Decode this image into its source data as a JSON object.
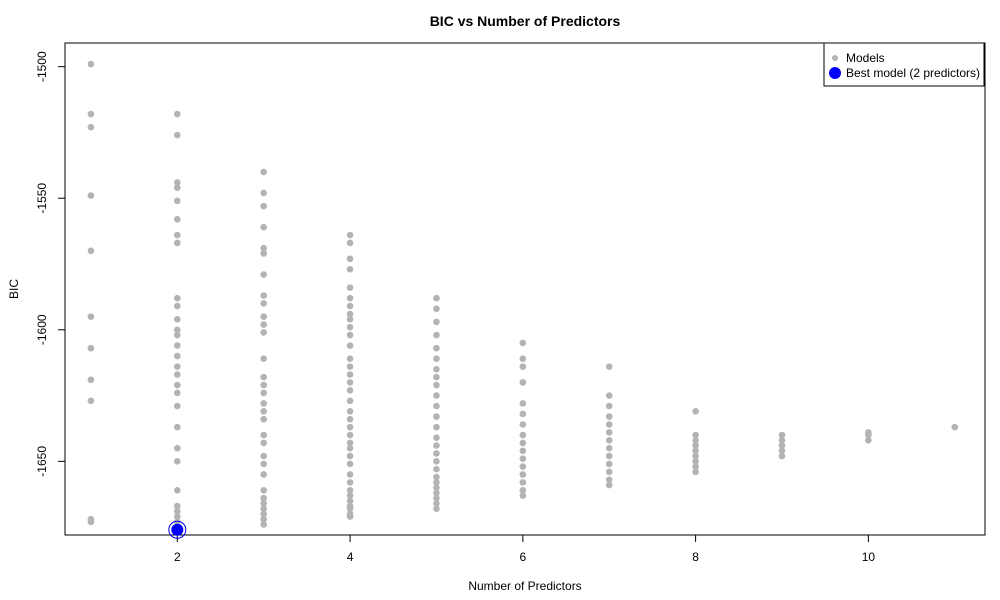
{
  "chart_data": {
    "type": "scatter",
    "title": "BIC vs Number of Predictors",
    "xlabel": "Number of Predictors",
    "ylabel": "BIC",
    "xlim": [
      0.7,
      11.35
    ],
    "ylim": [
      -1678,
      -1491
    ],
    "x_ticks": [
      2,
      4,
      6,
      8,
      10
    ],
    "y_ticks": [
      -1500,
      -1550,
      -1600,
      -1650
    ],
    "legend": {
      "position": "top-right",
      "entries": [
        "Models",
        "Best model (2 predictors)"
      ]
    },
    "colors": {
      "models": "#b3b3b3",
      "best": "#0000ff"
    },
    "series": [
      {
        "name": "Models",
        "points": [
          [
            1,
            -1499
          ],
          [
            1,
            -1518
          ],
          [
            1,
            -1523
          ],
          [
            1,
            -1549
          ],
          [
            1,
            -1570
          ],
          [
            1,
            -1595
          ],
          [
            1,
            -1607
          ],
          [
            1,
            -1619
          ],
          [
            1,
            -1627
          ],
          [
            1,
            -1672
          ],
          [
            1,
            -1673
          ],
          [
            2,
            -1518
          ],
          [
            2,
            -1526
          ],
          [
            2,
            -1544
          ],
          [
            2,
            -1546
          ],
          [
            2,
            -1551
          ],
          [
            2,
            -1558
          ],
          [
            2,
            -1564
          ],
          [
            2,
            -1567
          ],
          [
            2,
            -1588
          ],
          [
            2,
            -1591
          ],
          [
            2,
            -1596
          ],
          [
            2,
            -1600
          ],
          [
            2,
            -1602
          ],
          [
            2,
            -1606
          ],
          [
            2,
            -1610
          ],
          [
            2,
            -1614
          ],
          [
            2,
            -1617
          ],
          [
            2,
            -1621
          ],
          [
            2,
            -1624
          ],
          [
            2,
            -1629
          ],
          [
            2,
            -1637
          ],
          [
            2,
            -1645
          ],
          [
            2,
            -1650
          ],
          [
            2,
            -1661
          ],
          [
            2,
            -1667
          ],
          [
            2,
            -1669
          ],
          [
            2,
            -1671
          ],
          [
            2,
            -1673
          ],
          [
            3,
            -1540
          ],
          [
            3,
            -1548
          ],
          [
            3,
            -1553
          ],
          [
            3,
            -1561
          ],
          [
            3,
            -1569
          ],
          [
            3,
            -1571
          ],
          [
            3,
            -1579
          ],
          [
            3,
            -1587
          ],
          [
            3,
            -1590
          ],
          [
            3,
            -1595
          ],
          [
            3,
            -1598
          ],
          [
            3,
            -1601
          ],
          [
            3,
            -1611
          ],
          [
            3,
            -1618
          ],
          [
            3,
            -1621
          ],
          [
            3,
            -1624
          ],
          [
            3,
            -1628
          ],
          [
            3,
            -1631
          ],
          [
            3,
            -1634
          ],
          [
            3,
            -1640
          ],
          [
            3,
            -1643
          ],
          [
            3,
            -1648
          ],
          [
            3,
            -1651
          ],
          [
            3,
            -1655
          ],
          [
            3,
            -1661
          ],
          [
            3,
            -1664
          ],
          [
            3,
            -1666
          ],
          [
            3,
            -1668
          ],
          [
            3,
            -1670
          ],
          [
            3,
            -1672
          ],
          [
            3,
            -1674
          ],
          [
            4,
            -1564
          ],
          [
            4,
            -1567
          ],
          [
            4,
            -1573
          ],
          [
            4,
            -1577
          ],
          [
            4,
            -1584
          ],
          [
            4,
            -1588
          ],
          [
            4,
            -1591
          ],
          [
            4,
            -1594
          ],
          [
            4,
            -1596
          ],
          [
            4,
            -1599
          ],
          [
            4,
            -1602
          ],
          [
            4,
            -1606
          ],
          [
            4,
            -1611
          ],
          [
            4,
            -1614
          ],
          [
            4,
            -1617
          ],
          [
            4,
            -1620
          ],
          [
            4,
            -1623
          ],
          [
            4,
            -1627
          ],
          [
            4,
            -1631
          ],
          [
            4,
            -1634
          ],
          [
            4,
            -1637
          ],
          [
            4,
            -1640
          ],
          [
            4,
            -1643
          ],
          [
            4,
            -1645
          ],
          [
            4,
            -1648
          ],
          [
            4,
            -1651
          ],
          [
            4,
            -1655
          ],
          [
            4,
            -1658
          ],
          [
            4,
            -1661
          ],
          [
            4,
            -1663
          ],
          [
            4,
            -1665
          ],
          [
            4,
            -1667
          ],
          [
            4,
            -1668
          ],
          [
            4,
            -1670
          ],
          [
            4,
            -1671
          ],
          [
            5,
            -1588
          ],
          [
            5,
            -1592
          ],
          [
            5,
            -1597
          ],
          [
            5,
            -1602
          ],
          [
            5,
            -1607
          ],
          [
            5,
            -1611
          ],
          [
            5,
            -1615
          ],
          [
            5,
            -1618
          ],
          [
            5,
            -1621
          ],
          [
            5,
            -1625
          ],
          [
            5,
            -1629
          ],
          [
            5,
            -1633
          ],
          [
            5,
            -1637
          ],
          [
            5,
            -1641
          ],
          [
            5,
            -1644
          ],
          [
            5,
            -1647
          ],
          [
            5,
            -1650
          ],
          [
            5,
            -1653
          ],
          [
            5,
            -1656
          ],
          [
            5,
            -1658
          ],
          [
            5,
            -1660
          ],
          [
            5,
            -1662
          ],
          [
            5,
            -1664
          ],
          [
            5,
            -1666
          ],
          [
            5,
            -1668
          ],
          [
            6,
            -1605
          ],
          [
            6,
            -1611
          ],
          [
            6,
            -1614
          ],
          [
            6,
            -1620
          ],
          [
            6,
            -1628
          ],
          [
            6,
            -1632
          ],
          [
            6,
            -1636
          ],
          [
            6,
            -1640
          ],
          [
            6,
            -1643
          ],
          [
            6,
            -1646
          ],
          [
            6,
            -1649
          ],
          [
            6,
            -1652
          ],
          [
            6,
            -1655
          ],
          [
            6,
            -1658
          ],
          [
            6,
            -1661
          ],
          [
            6,
            -1663
          ],
          [
            7,
            -1614
          ],
          [
            7,
            -1625
          ],
          [
            7,
            -1629
          ],
          [
            7,
            -1633
          ],
          [
            7,
            -1636
          ],
          [
            7,
            -1639
          ],
          [
            7,
            -1642
          ],
          [
            7,
            -1645
          ],
          [
            7,
            -1648
          ],
          [
            7,
            -1651
          ],
          [
            7,
            -1654
          ],
          [
            7,
            -1657
          ],
          [
            7,
            -1659
          ],
          [
            8,
            -1631
          ],
          [
            8,
            -1640
          ],
          [
            8,
            -1642
          ],
          [
            8,
            -1644
          ],
          [
            8,
            -1646
          ],
          [
            8,
            -1648
          ],
          [
            8,
            -1650
          ],
          [
            8,
            -1652
          ],
          [
            8,
            -1654
          ],
          [
            9,
            -1640
          ],
          [
            9,
            -1642
          ],
          [
            9,
            -1644
          ],
          [
            9,
            -1646
          ],
          [
            9,
            -1648
          ],
          [
            10,
            -1639
          ],
          [
            10,
            -1640
          ],
          [
            10,
            -1642
          ],
          [
            11,
            -1637
          ]
        ]
      },
      {
        "name": "Best model (2 predictors)",
        "points": [
          [
            2,
            -1676
          ]
        ]
      }
    ]
  }
}
